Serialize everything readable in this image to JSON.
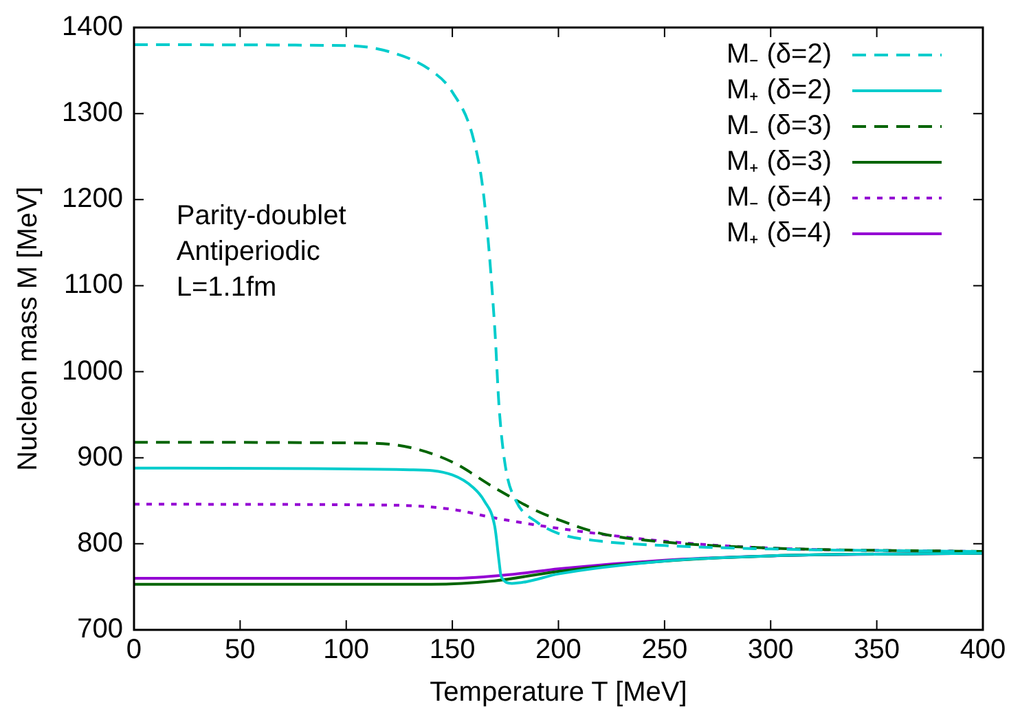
{
  "chart_data": {
    "type": "line",
    "xlabel": "Temperature T [MeV]",
    "ylabel": "Nucleon mass M [MeV]",
    "xlim": [
      0,
      400
    ],
    "xticks": [
      0,
      50,
      100,
      150,
      200,
      250,
      300,
      350,
      400
    ],
    "ylim": [
      700,
      1400
    ],
    "yticks": [
      700,
      800,
      900,
      1000,
      1100,
      1200,
      1300,
      1400
    ],
    "grid": false,
    "legend": "top right",
    "marker": "none",
    "annotations": [
      "Parity-doublet",
      "Antiperiodic",
      "L=1.1fm"
    ],
    "series": [
      {
        "name": "M₋ (δ=2)",
        "color": "#00cccc",
        "line_style": "dashed",
        "x": [
          0,
          100,
          120,
          140,
          150,
          160,
          165,
          170,
          172,
          175,
          180,
          190,
          200,
          220,
          250,
          300,
          400
        ],
        "values": [
          1380,
          1379,
          1372,
          1350,
          1325,
          1270,
          1200,
          1050,
          960,
          890,
          850,
          825,
          812,
          803,
          798,
          794,
          791
        ]
      },
      {
        "name": "M₊ (δ=2)",
        "color": "#00cccc",
        "line_style": "solid",
        "x": [
          0,
          130,
          150,
          160,
          165,
          170,
          172,
          173,
          178,
          185,
          200,
          250,
          300,
          400
        ],
        "values": [
          888,
          886,
          880,
          865,
          850,
          820,
          780,
          762,
          754,
          756,
          765,
          780,
          786,
          789
        ]
      },
      {
        "name": "M₋ (δ=3)",
        "color": "#006400",
        "line_style": "dashed",
        "x": [
          0,
          110,
          130,
          150,
          170,
          190,
          200,
          220,
          250,
          300,
          400
        ],
        "values": [
          918,
          917,
          912,
          895,
          865,
          838,
          828,
          812,
          802,
          795,
          791
        ]
      },
      {
        "name": "M₊ (δ=3)",
        "color": "#006400",
        "line_style": "solid",
        "x": [
          0,
          140,
          170,
          200,
          250,
          300,
          400
        ],
        "values": [
          753,
          753,
          757,
          768,
          780,
          786,
          789
        ]
      },
      {
        "name": "M₋ (δ=4)",
        "color": "#9400d3",
        "line_style": "dotted",
        "x": [
          0,
          120,
          150,
          170,
          200,
          250,
          300,
          400
        ],
        "values": [
          846,
          845,
          840,
          830,
          818,
          803,
          795,
          791
        ]
      },
      {
        "name": "M₊ (δ=4)",
        "color": "#9400d3",
        "line_style": "solid",
        "x": [
          0,
          150,
          180,
          200,
          250,
          300,
          400
        ],
        "values": [
          760,
          760,
          765,
          771,
          781,
          786,
          789
        ]
      }
    ]
  }
}
